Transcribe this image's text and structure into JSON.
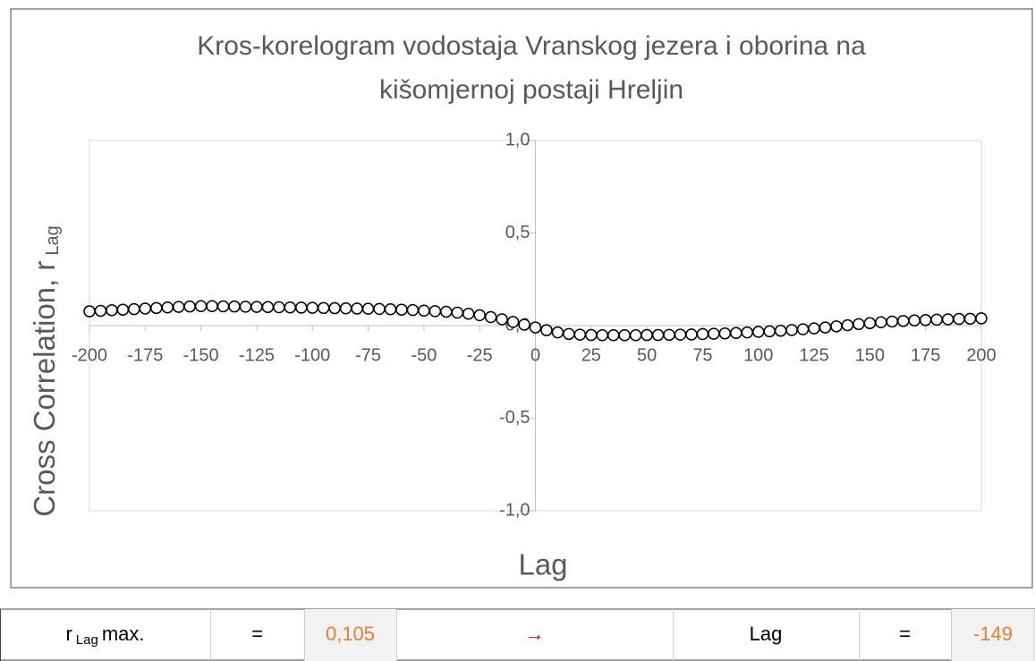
{
  "chart_data": {
    "type": "scatter",
    "title": [
      "Kros-korelogram vodostaja Vranskog jezera i oborina na",
      "kišomjernoj postaji Hreljin"
    ],
    "x_label": "Lag",
    "y_label": "Cross Correlation, r",
    "y_label_sub": "Lag",
    "xlim": [
      -200,
      200
    ],
    "xticks": [
      -200,
      -175,
      -150,
      -125,
      -100,
      -75,
      -50,
      -25,
      0,
      25,
      50,
      75,
      100,
      125,
      150,
      175,
      200
    ],
    "ylim": [
      -1,
      1
    ],
    "yticks": [
      {
        "value": 1,
        "label": "1,0"
      },
      {
        "value": 0.5,
        "label": "0,5"
      },
      {
        "value": 0,
        "label": "0,0"
      },
      {
        "value": -0.5,
        "label": "-0,5"
      },
      {
        "value": -1,
        "label": "-1,0"
      }
    ],
    "marker_color": "#000000",
    "marker_fill": "#ffffff",
    "x": [
      -200,
      -195,
      -190,
      -185,
      -180,
      -175,
      -170,
      -165,
      -160,
      -155,
      -150,
      -145,
      -140,
      -135,
      -130,
      -125,
      -120,
      -115,
      -110,
      -105,
      -100,
      -95,
      -90,
      -85,
      -80,
      -75,
      -70,
      -65,
      -60,
      -55,
      -50,
      -45,
      -40,
      -35,
      -30,
      -25,
      -20,
      -15,
      -10,
      -5,
      0,
      5,
      10,
      15,
      20,
      25,
      30,
      35,
      40,
      45,
      50,
      55,
      60,
      65,
      70,
      75,
      80,
      85,
      90,
      95,
      100,
      105,
      110,
      115,
      120,
      125,
      130,
      135,
      140,
      145,
      150,
      155,
      160,
      165,
      170,
      175,
      180,
      185,
      190,
      195,
      200
    ],
    "values": [
      0.077,
      0.08,
      0.083,
      0.086,
      0.089,
      0.092,
      0.095,
      0.098,
      0.101,
      0.103,
      0.105,
      0.105,
      0.104,
      0.103,
      0.102,
      0.101,
      0.1,
      0.099,
      0.098,
      0.097,
      0.096,
      0.095,
      0.094,
      0.093,
      0.092,
      0.091,
      0.09,
      0.088,
      0.086,
      0.084,
      0.081,
      0.078,
      0.075,
      0.07,
      0.064,
      0.056,
      0.046,
      0.034,
      0.02,
      0.005,
      -0.01,
      -0.025,
      -0.037,
      -0.045,
      -0.049,
      -0.051,
      -0.052,
      -0.052,
      -0.052,
      -0.052,
      -0.051,
      -0.051,
      -0.05,
      -0.049,
      -0.048,
      -0.046,
      -0.044,
      -0.042,
      -0.04,
      -0.037,
      -0.034,
      -0.031,
      -0.028,
      -0.024,
      -0.02,
      -0.015,
      -0.01,
      -0.004,
      0.002,
      0.008,
      0.013,
      0.018,
      0.022,
      0.025,
      0.028,
      0.03,
      0.032,
      0.034,
      0.036,
      0.037,
      0.039
    ]
  },
  "table": {
    "label": {
      "text": "r",
      "sub": "Lag",
      "rest": "max."
    },
    "cells": [
      "=",
      "0,105",
      "→",
      "Lag",
      "=",
      "-149"
    ]
  }
}
